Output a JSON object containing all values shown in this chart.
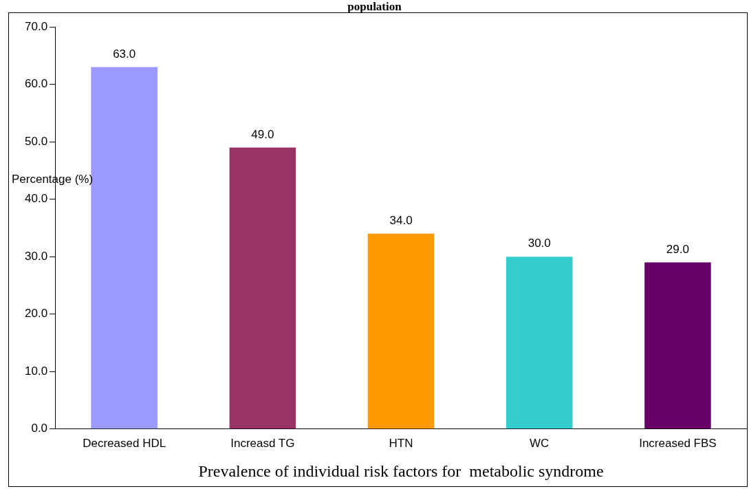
{
  "chart_data": {
    "type": "bar",
    "title": "population",
    "xlabel": "Prevalence of individual risk factors for  metabolic syndrome",
    "ylabel": "Percentage (%)",
    "categories": [
      "Decreased HDL",
      "Increasd TG",
      "HTN",
      "WC",
      "Increased FBS"
    ],
    "values": [
      63,
      49,
      34,
      30,
      29
    ],
    "colors": [
      "#9999ff",
      "#993366",
      "#ff9900",
      "#33cccc",
      "#660066"
    ],
    "ylim": [
      0,
      70
    ],
    "yticks": [
      {
        "value": 0,
        "label": "0.0"
      },
      {
        "value": 10,
        "label": "10.0"
      },
      {
        "value": 20,
        "label": "20.0"
      },
      {
        "value": 30,
        "label": "30.0"
      },
      {
        "value": 40,
        "label": "40.0"
      },
      {
        "value": 50,
        "label": "50.0"
      },
      {
        "value": 60,
        "label": "60.0"
      },
      {
        "value": 70,
        "label": "70.0"
      }
    ],
    "value_labels": [
      "63.0",
      "49.0",
      "34.0",
      "30.0",
      "29.0"
    ],
    "grid": false,
    "legend": false
  }
}
